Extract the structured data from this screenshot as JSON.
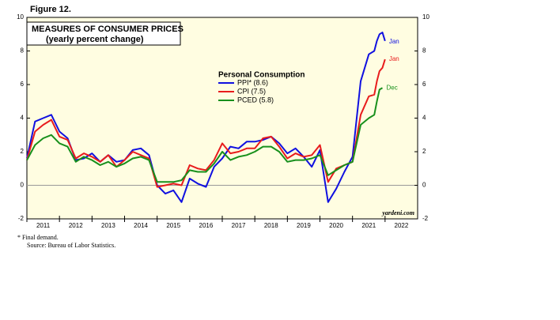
{
  "chart_data": {
    "type": "line",
    "figure_label": "Figure 12.",
    "title": "MEASURES OF CONSUMER PRICES",
    "subtitle": "(yearly percent change)",
    "legend_title": "Personal Consumption",
    "source_site": "yardeni.com",
    "footnotes": [
      "*  Final demand.",
      "Source: Bureau of Labor Statistics."
    ],
    "background": "#fffde1",
    "xlim": [
      2011,
      2023
    ],
    "xticks": [
      {
        "value": 2011,
        "label": "2011"
      },
      {
        "value": 2012,
        "label": "2012"
      },
      {
        "value": 2013,
        "label": "2013"
      },
      {
        "value": 2014,
        "label": "2014"
      },
      {
        "value": 2015,
        "label": "2015"
      },
      {
        "value": 2016,
        "label": "2016"
      },
      {
        "value": 2017,
        "label": "2017"
      },
      {
        "value": 2018,
        "label": "2018"
      },
      {
        "value": 2019,
        "label": "2019"
      },
      {
        "value": 2020,
        "label": "2020"
      },
      {
        "value": 2021,
        "label": "2021"
      },
      {
        "value": 2022,
        "label": "2022"
      }
    ],
    "ylim": [
      -2,
      10
    ],
    "yticks": [
      -2,
      0,
      2,
      4,
      6,
      8,
      10
    ],
    "y2lim": [
      -2,
      10
    ],
    "y2ticks": [
      -2,
      0,
      2,
      4,
      6,
      8,
      10
    ],
    "x": [
      2011.0,
      2011.25,
      2011.5,
      2011.75,
      2012.0,
      2012.25,
      2012.5,
      2012.75,
      2013.0,
      2013.25,
      2013.5,
      2013.75,
      2014.0,
      2014.25,
      2014.5,
      2014.75,
      2015.0,
      2015.25,
      2015.5,
      2015.75,
      2016.0,
      2016.25,
      2016.5,
      2016.75,
      2017.0,
      2017.25,
      2017.5,
      2017.75,
      2018.0,
      2018.25,
      2018.5,
      2018.75,
      2019.0,
      2019.25,
      2019.5,
      2019.75,
      2020.0,
      2020.25,
      2020.5,
      2020.75,
      2021.0,
      2021.25,
      2021.5,
      2021.67,
      2021.75,
      2021.83,
      2021.92,
      2022.0
    ],
    "series": [
      {
        "name": "PPI* (8.6)",
        "color": "#1010e0",
        "end_label": "Jan",
        "values": [
          1.6,
          3.8,
          4.0,
          4.2,
          3.2,
          2.8,
          1.5,
          1.6,
          1.9,
          1.4,
          1.8,
          1.4,
          1.5,
          2.1,
          2.2,
          1.8,
          0.0,
          -0.5,
          -0.3,
          -1.0,
          0.4,
          0.1,
          -0.1,
          1.1,
          1.6,
          2.3,
          2.2,
          2.6,
          2.6,
          2.7,
          2.9,
          2.5,
          1.9,
          2.2,
          1.7,
          1.1,
          2.1,
          -1.0,
          -0.2,
          0.8,
          1.7,
          6.2,
          7.8,
          8.0,
          8.6,
          9.0,
          9.1,
          8.6
        ]
      },
      {
        "name": "CPI (7.5)",
        "color": "#e81c1c",
        "end_label": "Jan",
        "values": [
          1.5,
          3.2,
          3.6,
          3.9,
          2.9,
          2.7,
          1.6,
          1.9,
          1.7,
          1.4,
          1.8,
          1.1,
          1.5,
          2.0,
          1.8,
          1.6,
          -0.1,
          0.0,
          0.1,
          0.0,
          1.2,
          1.0,
          0.9,
          1.5,
          2.5,
          1.9,
          2.0,
          2.2,
          2.2,
          2.8,
          2.9,
          2.3,
          1.6,
          1.9,
          1.7,
          1.8,
          2.4,
          0.2,
          1.0,
          1.2,
          1.4,
          4.2,
          5.3,
          5.4,
          6.2,
          6.8,
          7.0,
          7.5
        ]
      },
      {
        "name": "PCED (5.8)",
        "color": "#18901c",
        "end_label": "Dec",
        "values": [
          1.5,
          2.4,
          2.8,
          3.0,
          2.5,
          2.3,
          1.4,
          1.7,
          1.5,
          1.2,
          1.4,
          1.1,
          1.3,
          1.6,
          1.7,
          1.5,
          0.2,
          0.2,
          0.2,
          0.3,
          0.9,
          0.8,
          0.8,
          1.3,
          2.0,
          1.5,
          1.7,
          1.8,
          2.0,
          2.3,
          2.3,
          2.0,
          1.4,
          1.5,
          1.5,
          1.6,
          1.8,
          0.6,
          0.9,
          1.2,
          1.4,
          3.6,
          4.0,
          4.2,
          5.0,
          5.7,
          5.8,
          null
        ]
      }
    ]
  }
}
